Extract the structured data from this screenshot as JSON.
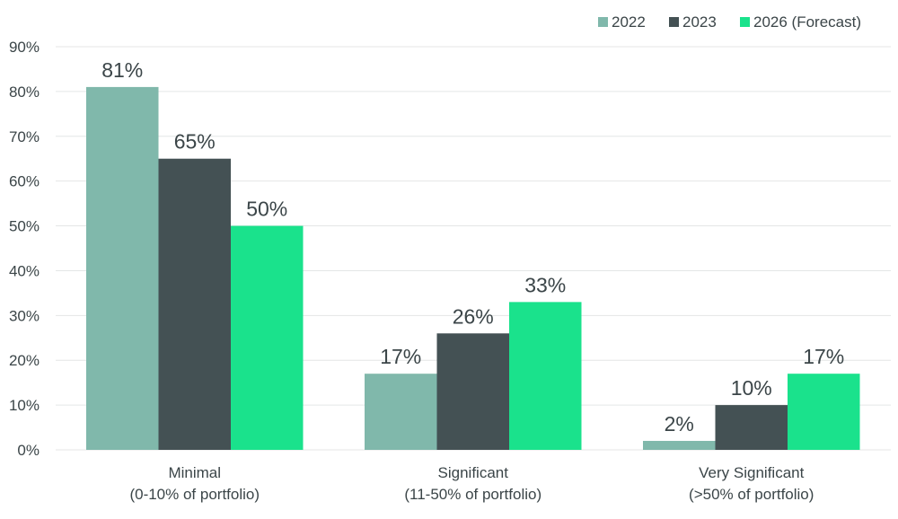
{
  "chart_data": {
    "type": "bar",
    "categories": [
      [
        "Minimal",
        "(0-10% of portfolio)"
      ],
      [
        "Significant",
        "(11-50% of portfolio)"
      ],
      [
        "Very Significant",
        "(>50% of portfolio)"
      ]
    ],
    "series": [
      {
        "name": "2022",
        "values": [
          81,
          17,
          2
        ],
        "color": "#80b8ab"
      },
      {
        "name": "2023",
        "values": [
          65,
          26,
          10
        ],
        "color": "#445154"
      },
      {
        "name": "2026 (Forecast)",
        "values": [
          50,
          33,
          17
        ],
        "color": "#1ae28c"
      }
    ],
    "value_suffix": "%",
    "ylim": [
      0,
      90
    ],
    "yticks": [
      0,
      10,
      20,
      30,
      40,
      50,
      60,
      70,
      80,
      90
    ],
    "ytick_labels": [
      "0%",
      "10%",
      "20%",
      "30%",
      "40%",
      "50%",
      "60%",
      "70%",
      "80%",
      "90%"
    ],
    "grid": true,
    "legend_position": "top-right"
  }
}
